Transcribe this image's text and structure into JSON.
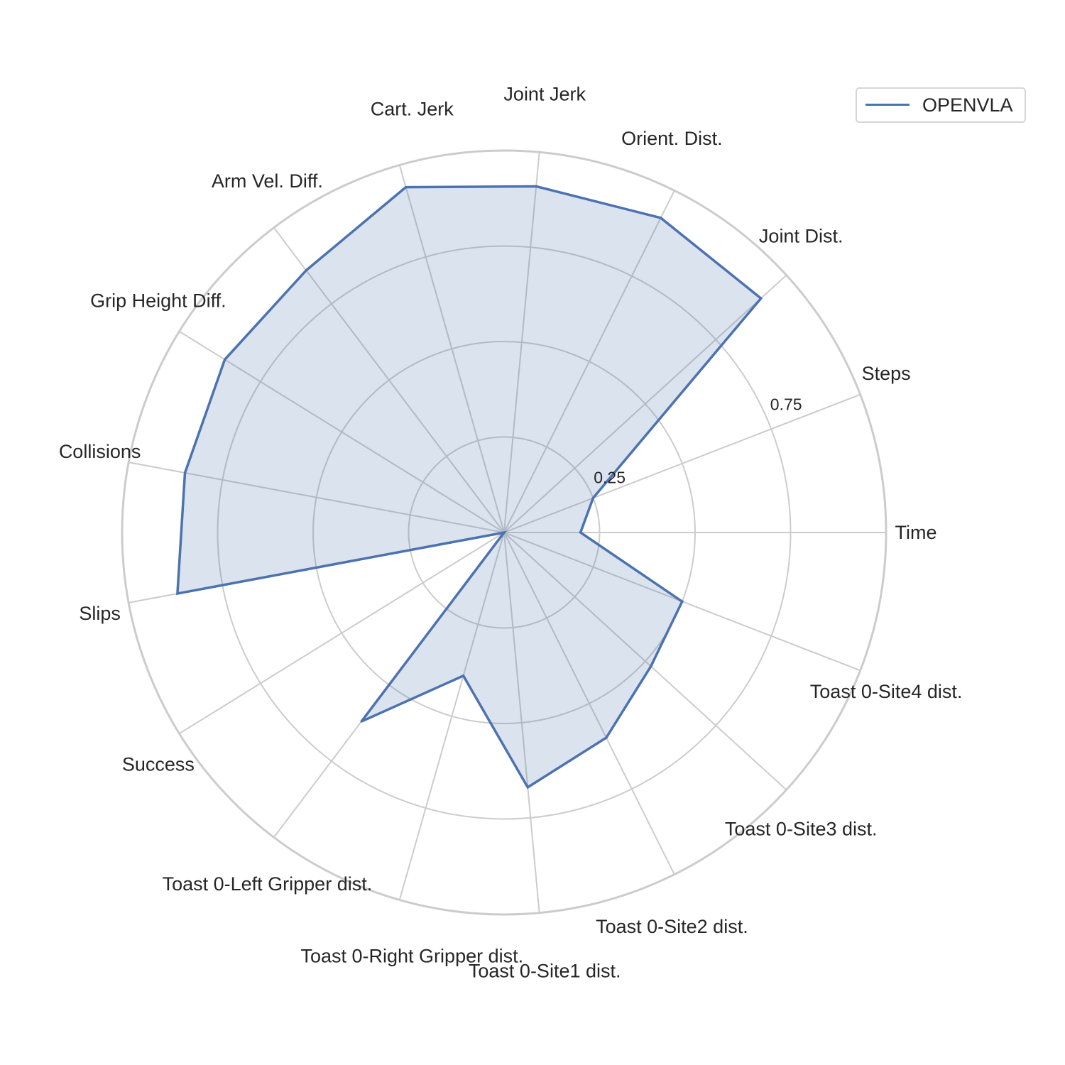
{
  "chart_data": {
    "type": "radar",
    "axes": [
      "Time",
      "Steps",
      "Joint Dist.",
      "Orient. Dist.",
      "Joint Jerk",
      "Cart. Jerk",
      "Arm Vel. Diff.",
      "Grip Height Diff.",
      "Collisions",
      "Slips",
      "Success",
      "Toast 0-Left Gripper dist.",
      "Toast 0-Right Gripper dist.",
      "Toast 0-Site1 dist.",
      "Toast 0-Site2 dist.",
      "Toast 0-Site3 dist.",
      "Toast 0-Site4 dist."
    ],
    "rlim": [
      0,
      1
    ],
    "rticks": [
      0.25,
      0.75
    ],
    "rtick_labels": [
      "0.25",
      "0.75"
    ],
    "grid": true,
    "legend_position": "top-right",
    "series": [
      {
        "name": "OPENVLA",
        "color": "#4c72b0",
        "values": [
          0.2,
          0.25,
          0.91,
          0.92,
          0.91,
          0.94,
          0.86,
          0.86,
          0.85,
          0.87,
          0.0,
          0.62,
          0.39,
          0.67,
          0.6,
          0.52,
          0.5
        ]
      }
    ]
  }
}
